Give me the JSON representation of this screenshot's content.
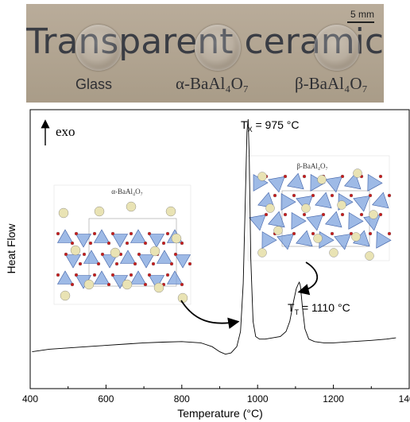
{
  "photo": {
    "title": "Transparent ceramic",
    "scale_bar": "5 mm",
    "samples": [
      "Glass",
      "α-BaAl₄O₇",
      "β-BaAl₄O₇"
    ]
  },
  "chart_data": {
    "type": "line",
    "xlabel": "Temperature (°C)",
    "ylabel": "Heat Flow",
    "xlim": [
      400,
      1400
    ],
    "xticks": [
      400,
      600,
      800,
      1000,
      1200,
      1400
    ],
    "x_tick_labels": [
      "400",
      "600",
      "800",
      "1000",
      "1200",
      "1400"
    ],
    "y_ticks_shown": false,
    "grid": false,
    "direction_label": "exo",
    "series": [
      {
        "x": [
          405,
          450,
          500,
          550,
          600,
          650,
          700,
          750,
          800,
          850,
          880,
          900,
          915,
          930,
          945,
          955,
          962,
          968,
          972,
          975,
          978,
          982,
          988,
          995,
          1005,
          1020,
          1040,
          1060,
          1075,
          1085,
          1095,
          1102,
          1108,
          1110,
          1113,
          1118,
          1125,
          1135,
          1150,
          1175,
          1200,
          1250,
          1300,
          1340,
          1365
        ],
        "y": [
          0.08,
          0.09,
          0.095,
          0.1,
          0.105,
          0.11,
          0.115,
          0.118,
          0.12,
          0.115,
          0.1,
          0.08,
          0.07,
          0.075,
          0.1,
          0.16,
          0.35,
          0.7,
          0.95,
          1.0,
          0.85,
          0.45,
          0.2,
          0.14,
          0.13,
          0.13,
          0.135,
          0.14,
          0.16,
          0.2,
          0.28,
          0.33,
          0.35,
          0.355,
          0.34,
          0.26,
          0.17,
          0.13,
          0.12,
          0.115,
          0.115,
          0.12,
          0.125,
          0.13,
          0.135
        ]
      }
    ],
    "annotations": [
      {
        "label": "T",
        "sub": "X",
        "text": " = 975 °C",
        "x": 975
      },
      {
        "label": "T",
        "sub": "T",
        "text": " = 1110 °C",
        "x": 1110
      }
    ],
    "insets": [
      {
        "title": "α-BaAl₄O₇"
      },
      {
        "title": "β-BaAl₄O₇"
      }
    ]
  }
}
